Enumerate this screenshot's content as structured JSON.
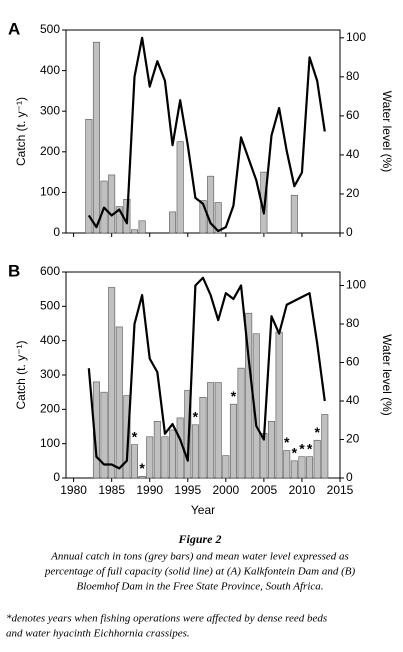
{
  "chart_data": [
    {
      "type": "combo",
      "label": "A",
      "ylabel": "Catch (t. y⁻¹)",
      "y2label": "Water level (%)",
      "x": [
        1982,
        1983,
        1984,
        1985,
        1986,
        1987,
        1988,
        1989,
        1990,
        1991,
        1992,
        1993,
        1994,
        1995,
        1996,
        1997,
        1998,
        1999,
        2000,
        2001,
        2002,
        2003,
        2004,
        2005,
        2006,
        2007,
        2008,
        2009,
        2010,
        2011,
        2012,
        2013
      ],
      "series": [
        {
          "type": "bar",
          "color": "#c0c0c0",
          "values": [
            280,
            470,
            128,
            143,
            65,
            83,
            8,
            30,
            null,
            null,
            null,
            52,
            225,
            null,
            null,
            80,
            140,
            75,
            null,
            null,
            null,
            null,
            null,
            150,
            null,
            null,
            null,
            93,
            null,
            null,
            null,
            null
          ]
        },
        {
          "type": "line",
          "color": "#000000",
          "axis": "y2",
          "values": [
            9,
            3,
            13,
            9,
            12,
            5,
            80,
            100,
            75,
            88,
            78,
            45,
            68,
            45,
            18,
            15,
            5,
            1,
            3,
            14,
            49,
            38,
            27,
            10,
            50,
            64,
            42,
            24,
            31,
            90,
            78,
            52
          ]
        }
      ],
      "xlim": [
        1979,
        2015
      ],
      "xticks": [
        1980,
        1985,
        1990,
        1995,
        2000,
        2005,
        2010,
        2015
      ],
      "xtick_labels": false,
      "ylim": [
        0,
        500
      ],
      "yticks": [
        0,
        100,
        200,
        300,
        400,
        500
      ],
      "y2lim": [
        0,
        104
      ],
      "y2ticks": [
        0,
        20,
        40,
        60,
        80,
        100
      ]
    },
    {
      "type": "combo",
      "label": "B",
      "ylabel": "Catch (t. y⁻¹)",
      "y2label": "Water level (%)",
      "xlabel": "Year",
      "x": [
        1982,
        1983,
        1984,
        1985,
        1986,
        1987,
        1988,
        1989,
        1990,
        1991,
        1992,
        1993,
        1994,
        1995,
        1996,
        1997,
        1998,
        1999,
        2000,
        2001,
        2002,
        2003,
        2004,
        2005,
        2006,
        2007,
        2008,
        2009,
        2010,
        2011,
        2012,
        2013
      ],
      "series": [
        {
          "type": "bar",
          "color": "#c0c0c0",
          "values": [
            null,
            280,
            250,
            555,
            440,
            240,
            97,
            5,
            120,
            165,
            120,
            140,
            175,
            255,
            155,
            235,
            278,
            278,
            65,
            215,
            320,
            480,
            420,
            130,
            165,
            425,
            80,
            50,
            62,
            62,
            110,
            185
          ]
        },
        {
          "type": "line",
          "color": "#000000",
          "axis": "y2",
          "values": [
            57,
            11,
            7,
            7,
            5,
            9,
            80,
            95,
            62,
            55,
            23,
            28,
            20,
            9,
            100,
            104,
            95,
            82,
            96,
            93,
            100,
            62,
            27,
            20,
            84,
            75,
            90,
            92,
            94,
            96,
            70,
            40
          ]
        }
      ],
      "annotations": [
        {
          "x": 1988,
          "label": "*"
        },
        {
          "x": 1989,
          "label": "*"
        },
        {
          "x": 1996,
          "label": "*"
        },
        {
          "x": 2001,
          "label": "*"
        },
        {
          "x": 2008,
          "label": "*"
        },
        {
          "x": 2009,
          "label": "*"
        },
        {
          "x": 2010,
          "label": "*"
        },
        {
          "x": 2011,
          "label": "*"
        },
        {
          "x": 2012,
          "label": "*"
        }
      ],
      "xlim": [
        1979,
        2015
      ],
      "xticks": [
        1980,
        1985,
        1990,
        1995,
        2000,
        2005,
        2010,
        2015
      ],
      "xtick_labels": true,
      "ylim": [
        0,
        600
      ],
      "yticks": [
        0,
        100,
        200,
        300,
        400,
        500,
        600
      ],
      "y2lim": [
        0,
        107
      ],
      "y2ticks": [
        0,
        20,
        40,
        60,
        80,
        100
      ]
    }
  ],
  "caption": {
    "title": "Figure 2",
    "lines": [
      "Annual catch in tons (grey bars) and mean water level expressed as",
      "percentage of full capacity (solid line) at (A) Kalkfontein Dam and (B)",
      "Bloemhof Dam in the Free State Province, South Africa."
    ],
    "notes": [
      "*denotes years when fishing operations were affected by dense reed beds",
      "and water hyacinth Eichhornia crassipes."
    ]
  }
}
